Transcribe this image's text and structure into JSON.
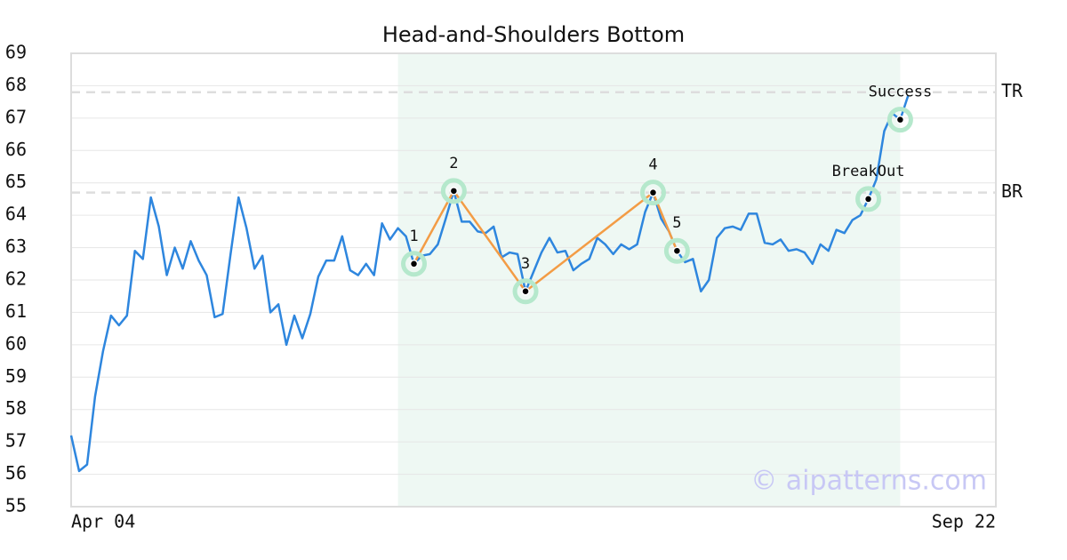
{
  "chart_data": {
    "type": "line",
    "title": "Head-and-Shoulders Bottom",
    "categories": [
      "Apr 04",
      null,
      null,
      null,
      null,
      null,
      null,
      null,
      null,
      null,
      null,
      null,
      null,
      null,
      null,
      null,
      null,
      null,
      null,
      null,
      null,
      null,
      null,
      null,
      null,
      null,
      null,
      null,
      null,
      null,
      null,
      null,
      null,
      null,
      null,
      null,
      null,
      null,
      null,
      null,
      null,
      null,
      null,
      null,
      null,
      null,
      null,
      null,
      null,
      null,
      null,
      null,
      null,
      null,
      null,
      null,
      null,
      null,
      null,
      null,
      null,
      null,
      null,
      null,
      null,
      null,
      null,
      null,
      null,
      null,
      null,
      null,
      null,
      null,
      null,
      null,
      null,
      null,
      null,
      null,
      null,
      null,
      null,
      null,
      null,
      null,
      null,
      null,
      null,
      null,
      null,
      null,
      null,
      null,
      null,
      null,
      null,
      null,
      null,
      null,
      null,
      null,
      null,
      null,
      null,
      null,
      null,
      null,
      null,
      null,
      null,
      null,
      null,
      null,
      null,
      null,
      "Sep 22"
    ],
    "values": [
      57.2,
      56.1,
      56.3,
      58.4,
      59.8,
      60.9,
      60.6,
      60.9,
      62.9,
      62.65,
      64.55,
      63.65,
      62.15,
      63.0,
      62.35,
      63.2,
      62.6,
      62.15,
      60.85,
      60.95,
      62.8,
      64.55,
      63.6,
      62.35,
      62.75,
      61.0,
      61.25,
      60.0,
      60.9,
      60.2,
      60.95,
      62.1,
      62.6,
      62.6,
      63.35,
      62.3,
      62.15,
      62.5,
      62.15,
      63.75,
      63.25,
      63.6,
      63.35,
      62.5,
      62.75,
      62.8,
      63.1,
      63.9,
      64.75,
      63.8,
      63.8,
      63.5,
      63.45,
      63.65,
      62.7,
      62.85,
      62.8,
      61.65,
      62.25,
      62.85,
      63.3,
      62.85,
      62.9,
      62.3,
      62.5,
      62.65,
      63.3,
      63.1,
      62.8,
      63.1,
      62.95,
      63.1,
      64.1,
      64.7,
      63.9,
      63.5,
      62.9,
      62.55,
      62.65,
      61.65,
      62.0,
      63.3,
      63.6,
      63.65,
      63.55,
      64.05,
      64.05,
      63.15,
      63.1,
      63.25,
      62.9,
      62.95,
      62.85,
      62.5,
      63.1,
      62.9,
      63.55,
      63.45,
      63.85,
      64.0,
      64.5,
      65.1,
      66.6,
      67.15,
      66.95,
      67.7,
      null,
      null,
      null,
      null,
      null,
      null,
      null,
      null,
      null,
      null,
      null
    ],
    "color": "#2e86de",
    "ylim": [
      55,
      69
    ],
    "yticks": [
      55,
      56,
      57,
      58,
      59,
      60,
      61,
      62,
      63,
      64,
      65,
      66,
      67,
      68,
      69
    ],
    "grid": true,
    "shade": {
      "start": 41,
      "end": 104
    },
    "levels": [
      {
        "label": "TR",
        "value": 67.8
      },
      {
        "label": "BR",
        "value": 64.7
      }
    ],
    "pattern_points": [
      {
        "label": "1",
        "index": 43,
        "value": 62.5
      },
      {
        "label": "2",
        "index": 48,
        "value": 64.75
      },
      {
        "label": "3",
        "index": 57,
        "value": 61.65
      },
      {
        "label": "4",
        "index": 73,
        "value": 64.7
      },
      {
        "label": "5",
        "index": 76,
        "value": 62.9
      }
    ],
    "signals": [
      {
        "label": "BreakOut",
        "index": 100,
        "value": 64.5
      },
      {
        "label": "Success",
        "index": 104,
        "value": 66.95
      }
    ],
    "watermark": "© aipatterns.com"
  }
}
